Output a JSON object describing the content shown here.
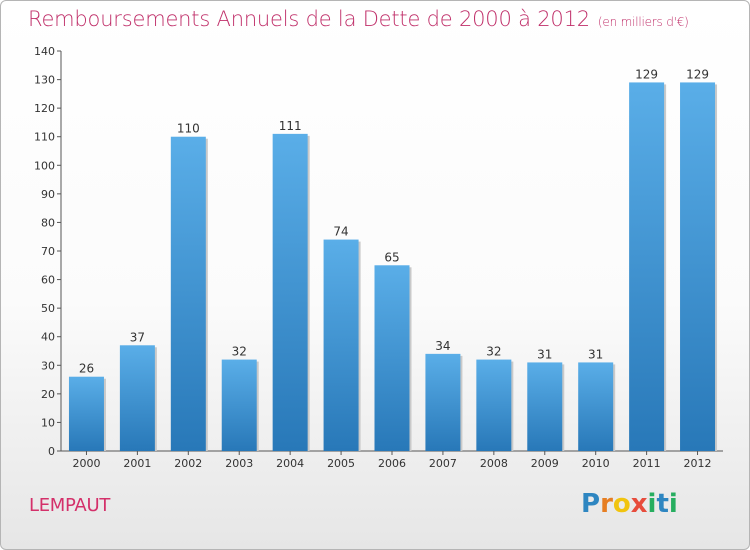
{
  "title": "Remboursements Annuels de la Dette de 2000 à 2012",
  "subtitle": "(en milliers d'€)",
  "commune": "LEMPAUT",
  "logo": {
    "letters": [
      "P",
      "r",
      "o",
      "x",
      "i",
      "t",
      "i"
    ],
    "colors": [
      "#2e86c1",
      "#e67e22",
      "#f1c40f",
      "#e74c3c",
      "#27ae60",
      "#2e86c1",
      "#27ae60"
    ]
  },
  "colors": {
    "bar_light": "#5aaee8",
    "bar_dark": "#2878b8",
    "title": "#c0306a"
  },
  "chart_data": {
    "type": "bar",
    "categories": [
      "2000",
      "2001",
      "2002",
      "2003",
      "2004",
      "2005",
      "2006",
      "2007",
      "2008",
      "2009",
      "2010",
      "2011",
      "2012"
    ],
    "values": [
      26,
      37,
      110,
      32,
      111,
      74,
      65,
      34,
      32,
      31,
      31,
      129,
      129
    ],
    "ylim": [
      0,
      140
    ],
    "yticks": [
      0,
      10,
      20,
      30,
      40,
      50,
      60,
      70,
      80,
      90,
      100,
      110,
      120,
      130,
      140
    ],
    "grid": false
  }
}
